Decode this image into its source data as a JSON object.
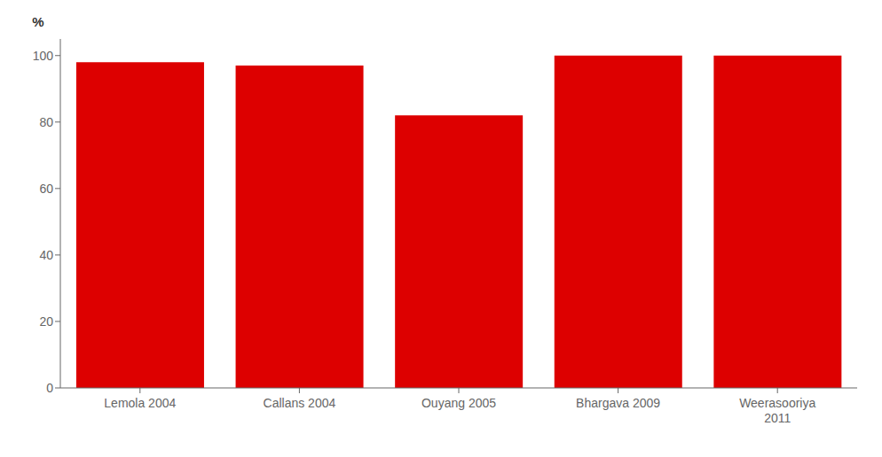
{
  "chart_data": {
    "type": "bar",
    "categories": [
      "Lemola 2004",
      "Callans 2004",
      "Ouyang 2005",
      "Bhargava 2009",
      "Weerasooriya\n2011"
    ],
    "values": [
      98,
      97,
      82,
      100,
      100
    ],
    "color": "#DD0000",
    "ylabel": "%",
    "ylim": [
      0,
      105
    ],
    "yticks": [
      0,
      20,
      40,
      60,
      80,
      100
    ],
    "grid": false
  }
}
